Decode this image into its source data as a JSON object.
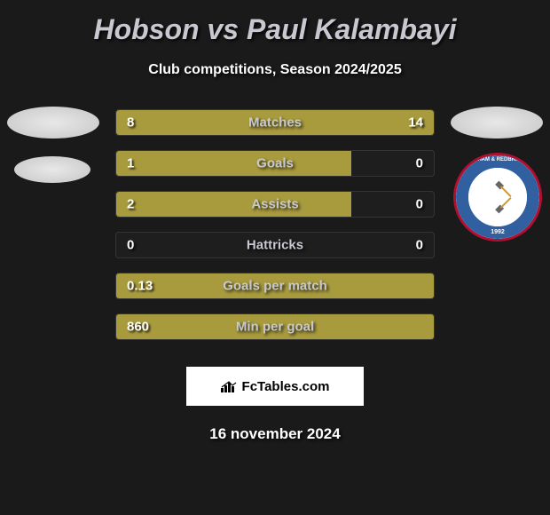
{
  "title": "Hobson vs Paul Kalambayi",
  "subtitle": "Club competitions, Season 2024/2025",
  "colors": {
    "background": "#1a1a1a",
    "bar_fill": "#a89b3d",
    "title_color": "#c8c8d0",
    "text_color": "#ffffff",
    "brand_bg": "#ffffff",
    "crest_ring": "#3060a0",
    "crest_border": "#b01030"
  },
  "bars": [
    {
      "label": "Matches",
      "left_val": "8",
      "right_val": "14",
      "left_pct": 36,
      "right_pct": 64,
      "mode": "split"
    },
    {
      "label": "Goals",
      "left_val": "1",
      "right_val": "0",
      "left_pct": 74,
      "right_pct": 0,
      "mode": "split"
    },
    {
      "label": "Assists",
      "left_val": "2",
      "right_val": "0",
      "left_pct": 74,
      "right_pct": 0,
      "mode": "split"
    },
    {
      "label": "Hattricks",
      "left_val": "0",
      "right_val": "0",
      "left_pct": 0,
      "right_pct": 0,
      "mode": "split"
    },
    {
      "label": "Goals per match",
      "left_val": "0.13",
      "right_val": "",
      "left_pct": 100,
      "right_pct": 0,
      "mode": "full"
    },
    {
      "label": "Min per goal",
      "left_val": "860",
      "right_val": "",
      "left_pct": 100,
      "right_pct": 0,
      "mode": "full"
    }
  ],
  "brand": {
    "text": "FcTables.com"
  },
  "date": "16 november 2024",
  "crest": {
    "top_text": "DAGENHAM & REDBRIDGE FC",
    "bottom_text": "1992"
  }
}
